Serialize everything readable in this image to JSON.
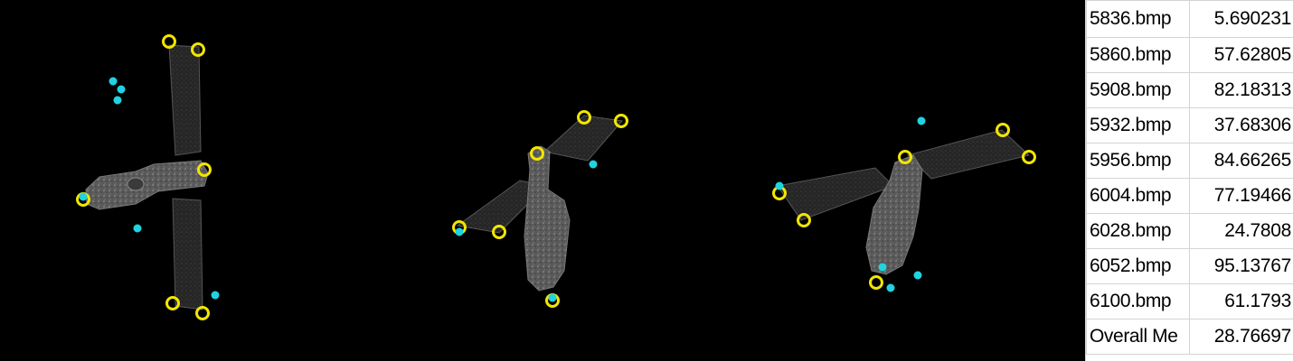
{
  "results_table": {
    "rows": [
      {
        "name": "5836.bmp",
        "value": "5.690231"
      },
      {
        "name": "5860.bmp",
        "value": "57.62805"
      },
      {
        "name": "5908.bmp",
        "value": "82.18313"
      },
      {
        "name": "5932.bmp",
        "value": "37.68306"
      },
      {
        "name": "5956.bmp",
        "value": "84.66265"
      },
      {
        "name": "6004.bmp",
        "value": "77.19466"
      },
      {
        "name": "6028.bmp",
        "value": "24.7808"
      },
      {
        "name": "6052.bmp",
        "value": "95.13767"
      },
      {
        "name": "6100.bmp",
        "value": "61.1793"
      },
      {
        "name": "Overall Me",
        "value": "28.76697"
      }
    ]
  },
  "colors": {
    "background": "#000000",
    "ground_truth_ring": "#f2e600",
    "prediction_dot": "#1fd3e0",
    "model_body": "#6b6b6b",
    "solar_panel": "#2a2a2a",
    "grid_line": "#d4d4d4"
  },
  "legend_semantics": {
    "yellow_ring": "keypoint-ground-truth",
    "cyan_dot": "keypoint-prediction"
  }
}
